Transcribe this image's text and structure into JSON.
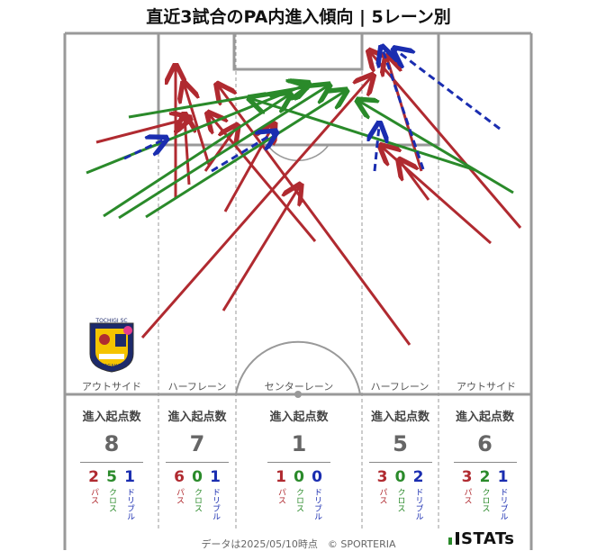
{
  "title": "直近3試合のPA内進入傾向 | 5レーン別",
  "logo_text": {
    "top": "TOCHIGI SC",
    "bottom": "MIYAGAHARA"
  },
  "lanes": [
    {
      "name": "アウトサイド",
      "header": "進入起点数",
      "total": "8",
      "pass": "2",
      "cross": "5",
      "dribble": "1"
    },
    {
      "name": "ハーフレーン",
      "header": "進入起点数",
      "total": "7",
      "pass": "6",
      "cross": "0",
      "dribble": "1"
    },
    {
      "name": "センターレーン",
      "header": "進入起点数",
      "total": "1",
      "pass": "1",
      "cross": "0",
      "dribble": "0"
    },
    {
      "name": "ハーフレーン",
      "header": "進入起点数",
      "total": "5",
      "pass": "3",
      "cross": "0",
      "dribble": "2"
    },
    {
      "name": "アウトサイド",
      "header": "進入起点数",
      "total": "6",
      "pass": "3",
      "cross": "2",
      "dribble": "1"
    }
  ],
  "type_labels": {
    "pass": "パス",
    "cross": "クロス",
    "dribble": "ドリブル"
  },
  "colors": {
    "pass": "#b02a30",
    "cross": "#2a8a2a",
    "dribble": "#1a2db0"
  },
  "footer": "データは2025/05/10時点　© SPORTERIA",
  "brand": "STATs"
}
